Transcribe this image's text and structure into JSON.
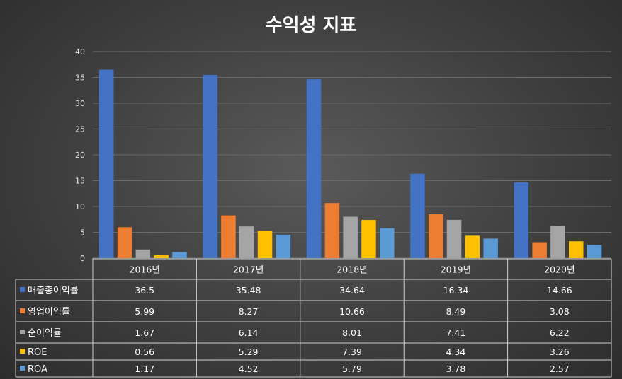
{
  "chart_data": {
    "type": "bar",
    "title": "수익성 지표",
    "categories": [
      "2016년",
      "2017년",
      "2018년",
      "2019년",
      "2020년"
    ],
    "ylim": [
      0,
      40
    ],
    "yticks": [
      0,
      5,
      10,
      15,
      20,
      25,
      30,
      35,
      40
    ],
    "grid": true,
    "legend": "data-table",
    "series": [
      {
        "name": "매출총이익률",
        "color": "#4472c4",
        "values": [
          36.5,
          35.48,
          34.64,
          16.34,
          14.66
        ]
      },
      {
        "name": "영업이익률",
        "color": "#ed7d31",
        "values": [
          5.99,
          8.27,
          10.66,
          8.49,
          3.08
        ]
      },
      {
        "name": "순이익률",
        "color": "#a5a5a5",
        "values": [
          1.67,
          6.14,
          8.01,
          7.41,
          6.22
        ]
      },
      {
        "name": "ROE",
        "color": "#ffc000",
        "values": [
          0.56,
          5.29,
          7.39,
          4.34,
          3.26
        ]
      },
      {
        "name": "ROA",
        "color": "#5b9bd5",
        "values": [
          1.17,
          4.52,
          5.79,
          3.78,
          2.57
        ]
      }
    ]
  }
}
